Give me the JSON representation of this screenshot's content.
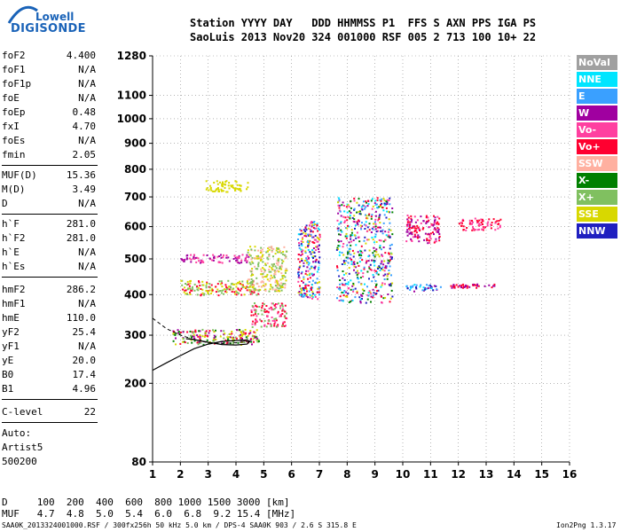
{
  "header": {
    "logo_top": "Lowell",
    "logo_bottom": "DIGISONDE",
    "labels_line": "Station YYYY DAY   DDD HHMMSS P1  FFS S AXN PPS IGA PS",
    "values_line": "SaoLuis 2013 Nov20 324 001000 RSF 005 2 713 100 10+ 22"
  },
  "params": {
    "group1": [
      {
        "name": "foF2",
        "value": "4.400"
      },
      {
        "name": "foF1",
        "value": "N/A"
      },
      {
        "name": "foF1p",
        "value": "N/A"
      },
      {
        "name": "foE",
        "value": "N/A"
      },
      {
        "name": "foEp",
        "value": "0.48"
      },
      {
        "name": "fxI",
        "value": "4.70"
      },
      {
        "name": "foEs",
        "value": "N/A"
      },
      {
        "name": "fmin",
        "value": "2.05"
      }
    ],
    "group2": [
      {
        "name": "MUF(D)",
        "value": "15.36"
      },
      {
        "name": "M(D)",
        "value": "3.49"
      },
      {
        "name": "D",
        "value": "N/A"
      }
    ],
    "group3": [
      {
        "name": "h`F",
        "value": "281.0"
      },
      {
        "name": "h`F2",
        "value": "281.0"
      },
      {
        "name": "h`E",
        "value": "N/A"
      },
      {
        "name": "h`Es",
        "value": "N/A"
      }
    ],
    "group4": [
      {
        "name": "hmF2",
        "value": "286.2"
      },
      {
        "name": "hmF1",
        "value": "N/A"
      },
      {
        "name": "hmE",
        "value": "110.0"
      },
      {
        "name": "yF2",
        "value": "25.4"
      },
      {
        "name": "yF1",
        "value": "N/A"
      },
      {
        "name": "yE",
        "value": "20.0"
      },
      {
        "name": "B0",
        "value": "17.4"
      },
      {
        "name": "B1",
        "value": "4.96"
      }
    ],
    "group5": [
      {
        "name": "C-level",
        "value": "22"
      }
    ],
    "auto": [
      "Auto:",
      "Artist5",
      "500200"
    ]
  },
  "legend": [
    {
      "label": "NoVal",
      "color": "#a0a0a0"
    },
    {
      "label": "NNE",
      "color": "#00e5ff"
    },
    {
      "label": "E",
      "color": "#3aa0ff"
    },
    {
      "label": "W",
      "color": "#a000a0"
    },
    {
      "label": "Vo-",
      "color": "#ff40a0"
    },
    {
      "label": "Vo+",
      "color": "#ff0030"
    },
    {
      "label": "SSW",
      "color": "#ffb0a0"
    },
    {
      "label": "X-",
      "color": "#008000"
    },
    {
      "label": "X+",
      "color": "#80c060"
    },
    {
      "label": "SSE",
      "color": "#d8d800"
    },
    {
      "label": "NNW",
      "color": "#2020c0"
    }
  ],
  "bottom": {
    "line1": "D     100  200  400  600  800 1000 1500 3000 [km]",
    "line2": "MUF   4.7  4.8  5.0  5.4  6.0  6.8  9.2 15.4 [MHz]",
    "footer": "SAA0K_2013324001000.RSF / 300fx256h 50 kHz 5.0 km / DPS-4 SAA0K 903 / 2.6 S 315.8 E",
    "version": "Ion2Png 1.3.17"
  },
  "chart_data": {
    "type": "scatter",
    "xlabel": "",
    "ylabel": "",
    "xlim": [
      1,
      16
    ],
    "ylim": [
      80,
      1280
    ],
    "x_ticks": [
      "1",
      "2",
      "3",
      "4",
      "5",
      "6",
      "7",
      "8",
      "9",
      "10",
      "11",
      "12",
      "13",
      "14",
      "15",
      "16"
    ],
    "y_ticks": [
      "80",
      "200",
      "300",
      "400",
      "500",
      "600",
      "700",
      "800",
      "900",
      "1000",
      "1100",
      "1280"
    ],
    "y_mapping": "sqrt",
    "grid": true,
    "echo_clusters": [
      {
        "x": [
          1.7,
          4.8
        ],
        "y": [
          280,
          315
        ],
        "colors": [
          "#ff0030",
          "#008000",
          "#d8d800",
          "#80c060",
          "#a000a0"
        ]
      },
      {
        "x": [
          2.0,
          4.8
        ],
        "y": [
          400,
          440
        ],
        "colors": [
          "#d8d800",
          "#80c060",
          "#ff0030"
        ]
      },
      {
        "x": [
          2.0,
          4.5
        ],
        "y": [
          490,
          515
        ],
        "colors": [
          "#a000a0",
          "#ff40a0"
        ]
      },
      {
        "x": [
          2.9,
          4.4
        ],
        "y": [
          720,
          760
        ],
        "colors": [
          "#d8d800"
        ]
      },
      {
        "x": [
          4.5,
          5.8
        ],
        "y": [
          320,
          380
        ],
        "colors": [
          "#ff0030",
          "#ff40a0",
          "#80c060"
        ]
      },
      {
        "x": [
          4.4,
          5.8
        ],
        "y": [
          410,
          540
        ],
        "colors": [
          "#d8d800",
          "#80c060",
          "#ffb0a0"
        ]
      },
      {
        "x": [
          6.2,
          7.0
        ],
        "y": [
          390,
          620
        ],
        "colors": [
          "#a000a0",
          "#ff40a0",
          "#ff0030",
          "#00e5ff",
          "#3aa0ff",
          "#d8d800",
          "#2020c0"
        ]
      },
      {
        "x": [
          7.6,
          9.6
        ],
        "y": [
          380,
          700
        ],
        "colors": [
          "#a000a0",
          "#ff40a0",
          "#ff0030",
          "#00e5ff",
          "#3aa0ff",
          "#d8d800",
          "#2020c0",
          "#008000"
        ]
      },
      {
        "x": [
          10.1,
          11.4
        ],
        "y": [
          410,
          430
        ],
        "colors": [
          "#a000a0",
          "#00e5ff",
          "#3aa0ff",
          "#2020c0"
        ]
      },
      {
        "x": [
          10.1,
          11.3
        ],
        "y": [
          550,
          640
        ],
        "colors": [
          "#a000a0",
          "#ff40a0",
          "#ff0030"
        ]
      },
      {
        "x": [
          11.7,
          13.3
        ],
        "y": [
          420,
          430
        ],
        "colors": [
          "#ff0030",
          "#a000a0"
        ]
      },
      {
        "x": [
          12.0,
          13.5
        ],
        "y": [
          590,
          630
        ],
        "colors": [
          "#ff0030",
          "#ff40a0"
        ]
      }
    ],
    "profile_curve": [
      [
        1,
        225
      ],
      [
        1.5,
        240
      ],
      [
        2.0,
        255
      ],
      [
        2.5,
        270
      ],
      [
        3.0,
        280
      ],
      [
        3.5,
        286
      ],
      [
        4.0,
        288
      ],
      [
        4.4,
        289
      ],
      [
        4.5,
        286
      ],
      [
        4.4,
        280
      ],
      [
        4.0,
        278
      ],
      [
        3.5,
        279
      ],
      [
        3.0,
        284
      ],
      [
        2.5,
        290
      ],
      [
        2.2,
        292
      ]
    ],
    "dashed_curve": [
      [
        1,
        340
      ],
      [
        1.5,
        315
      ],
      [
        2.0,
        300
      ],
      [
        2.5,
        290
      ],
      [
        3.0,
        283
      ],
      [
        3.5,
        281
      ],
      [
        4.0,
        283
      ],
      [
        4.5,
        286
      ]
    ]
  }
}
